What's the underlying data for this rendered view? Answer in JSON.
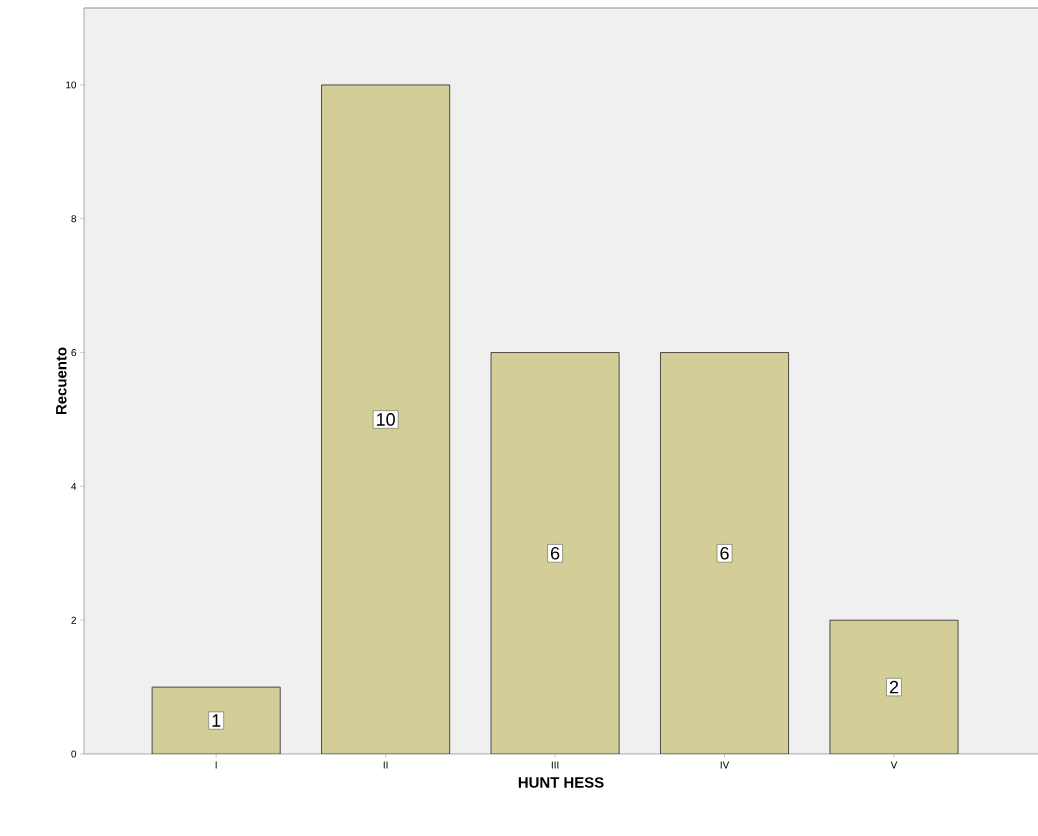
{
  "chart_data": {
    "type": "bar",
    "xlabel": "HUNT HESS",
    "ylabel": "Recuento",
    "categories": [
      "I",
      "II",
      "III",
      "IV",
      "V"
    ],
    "values": [
      1,
      10,
      6,
      6,
      2
    ],
    "color": "#d3ce97",
    "ylim": [
      0,
      11.15
    ],
    "yticks": [
      0,
      2,
      4,
      6,
      8,
      10
    ],
    "grid": false,
    "data_labels": true
  }
}
